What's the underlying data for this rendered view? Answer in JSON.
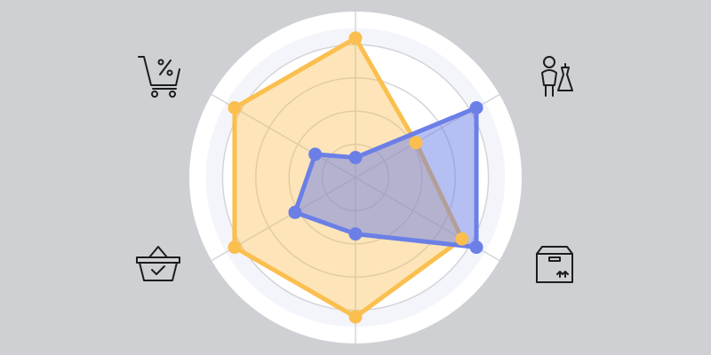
{
  "chart_data": {
    "type": "radar",
    "categories": [
      null,
      null,
      null,
      null,
      null,
      null
    ],
    "series": [
      {
        "color": "#fbbf4f",
        "values": [
          4.2,
          2.1,
          3.7,
          4.2,
          4.2,
          4.2
        ]
      },
      {
        "color": "#6b7fe6",
        "values": [
          0.6,
          4.2,
          4.2,
          1.7,
          2.1,
          1.4
        ]
      }
    ],
    "ylim": [
      0,
      5
    ],
    "yticks": [
      1,
      2,
      3,
      4
    ],
    "grid": true
  }
}
